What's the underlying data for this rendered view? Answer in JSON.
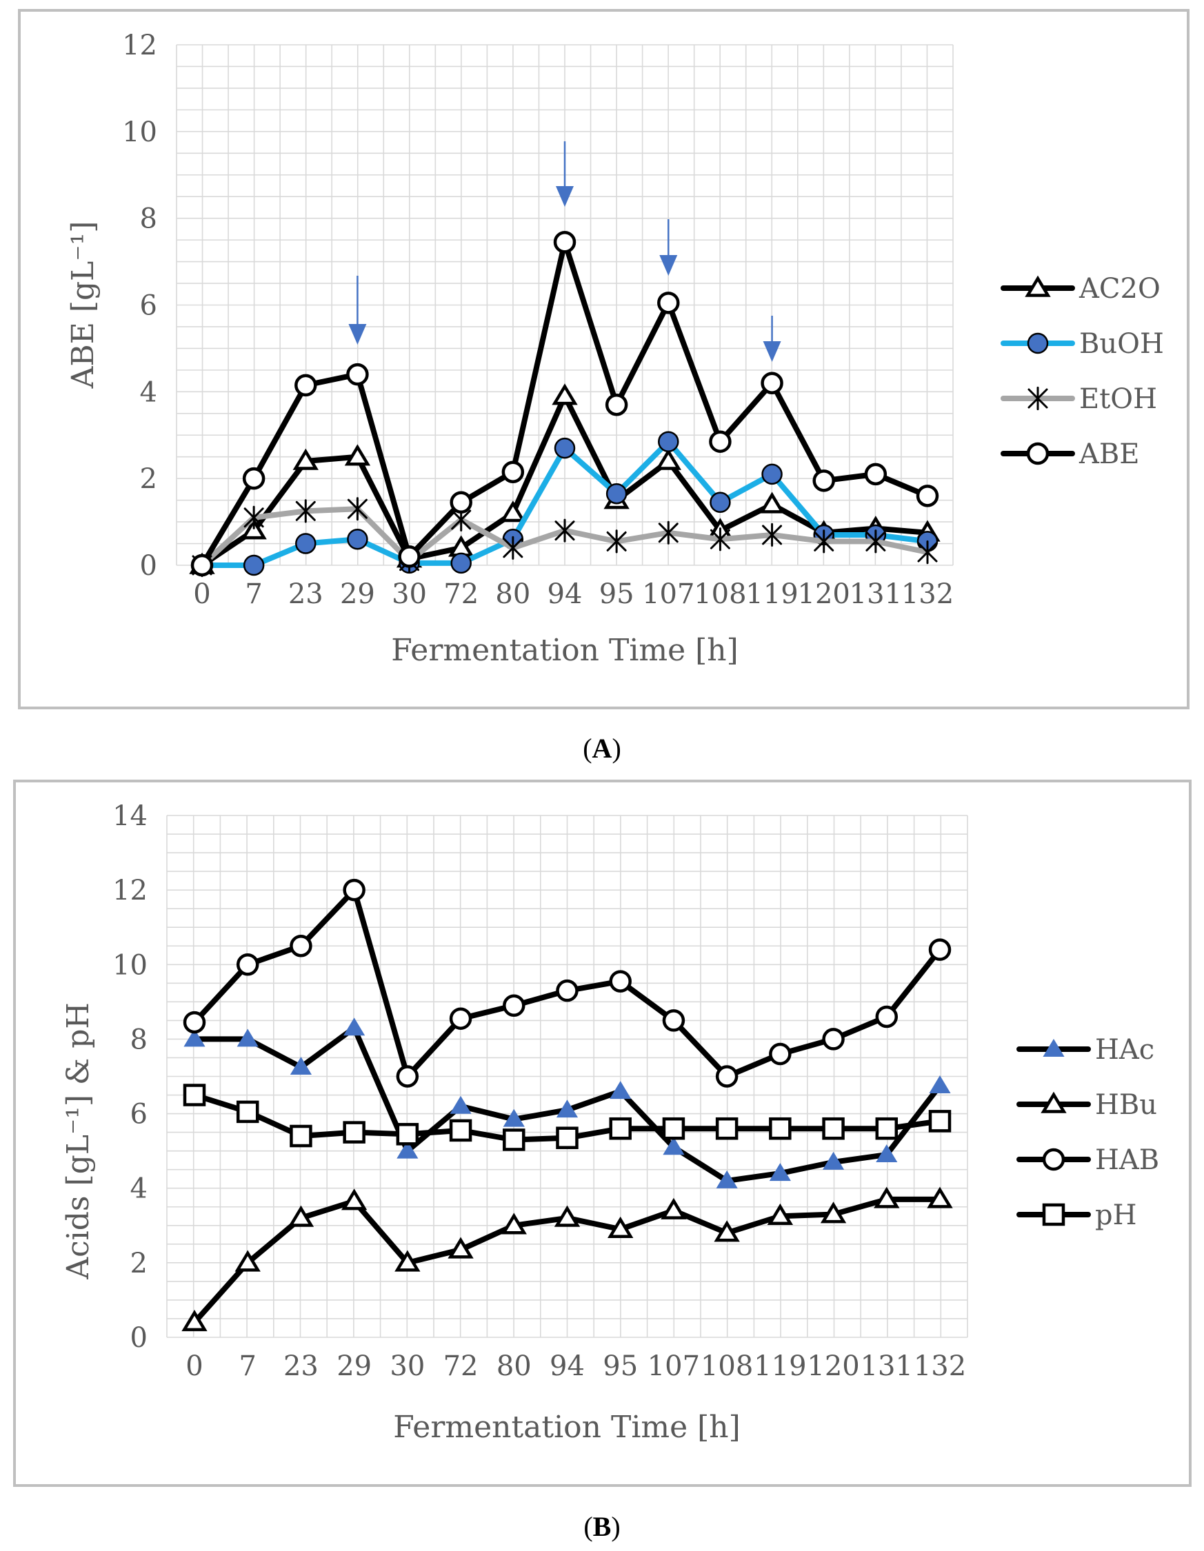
{
  "captions": {
    "a": "(A)",
    "b": "(B)"
  },
  "colors": {
    "black": "#000000",
    "blue_line": "#1CAEE6",
    "blue_marker": "#4472C4",
    "gray_line": "#A6A6A6",
    "grid": "#D9D9D9",
    "frame": "#BFBFBF",
    "text": "#595959",
    "arrow": "#4472C4"
  },
  "chart_data": [
    {
      "id": "A",
      "type": "line",
      "categories": [
        "0",
        "7",
        "23",
        "29",
        "30",
        "72",
        "80",
        "94",
        "95",
        "107",
        "108",
        "119",
        "120",
        "131",
        "132"
      ],
      "ylabel": "ABE [gL⁻¹]",
      "xlabel": "Fermentation Time [h]",
      "ylim": [
        0,
        12
      ],
      "yticks": [
        0,
        2,
        4,
        6,
        8,
        10,
        12
      ],
      "grid": true,
      "legend_position": "right",
      "arrows_at": [
        "29",
        "94",
        "107",
        "119"
      ],
      "series": [
        {
          "name": "AC2O",
          "marker": "triangle-open",
          "color": "#000000",
          "values": [
            0,
            0.8,
            2.4,
            2.5,
            0.15,
            0.4,
            1.2,
            3.9,
            1.5,
            2.4,
            0.8,
            1.4,
            0.75,
            0.85,
            0.75
          ]
        },
        {
          "name": "BuOH",
          "marker": "circle-filled",
          "color": "#1CAEE6",
          "values": [
            0,
            0,
            0.5,
            0.6,
            0.05,
            0.05,
            0.6,
            2.7,
            1.65,
            2.85,
            1.45,
            2.1,
            0.7,
            0.7,
            0.55
          ]
        },
        {
          "name": "EtOH",
          "marker": "star",
          "color": "#A6A6A6",
          "values": [
            0,
            1.1,
            1.25,
            1.3,
            0.1,
            1.05,
            0.4,
            0.8,
            0.55,
            0.75,
            0.6,
            0.7,
            0.55,
            0.55,
            0.3
          ]
        },
        {
          "name": "ABE",
          "marker": "circle-open",
          "color": "#000000",
          "values": [
            0,
            2.0,
            4.15,
            4.4,
            0.2,
            1.45,
            2.15,
            7.45,
            3.7,
            6.05,
            2.85,
            4.2,
            1.95,
            2.1,
            1.6
          ]
        }
      ]
    },
    {
      "id": "B",
      "type": "line",
      "categories": [
        "0",
        "7",
        "23",
        "29",
        "30",
        "72",
        "80",
        "94",
        "95",
        "107",
        "108",
        "119",
        "120",
        "131",
        "132"
      ],
      "ylabel": "Acids [gL⁻¹] & pH",
      "xlabel": "Fermentation Time [h]",
      "ylim": [
        0,
        14
      ],
      "yticks": [
        0,
        2,
        4,
        6,
        8,
        10,
        12,
        14
      ],
      "grid": true,
      "legend_position": "right",
      "series": [
        {
          "name": "HAc",
          "marker": "triangle-filled",
          "color": "#000000",
          "values": [
            8.0,
            8.0,
            7.25,
            8.3,
            5.0,
            6.2,
            5.85,
            6.1,
            6.6,
            5.1,
            4.2,
            4.4,
            4.7,
            4.9,
            6.75
          ]
        },
        {
          "name": "HBu",
          "marker": "triangle-open",
          "color": "#000000",
          "values": [
            0.4,
            2.0,
            3.2,
            3.65,
            2.0,
            2.35,
            3.0,
            3.2,
            2.9,
            3.4,
            2.8,
            3.25,
            3.3,
            3.7,
            3.7
          ]
        },
        {
          "name": "HAB",
          "marker": "circle-open",
          "color": "#000000",
          "values": [
            8.45,
            10.0,
            10.5,
            12.0,
            7.0,
            8.55,
            8.9,
            9.3,
            9.55,
            8.5,
            7.0,
            7.6,
            8.0,
            8.6,
            10.4
          ]
        },
        {
          "name": "pH",
          "marker": "square-open",
          "color": "#000000",
          "values": [
            6.5,
            6.05,
            5.4,
            5.5,
            5.45,
            5.55,
            5.3,
            5.35,
            5.6,
            5.6,
            5.6,
            5.6,
            5.6,
            5.6,
            5.8
          ]
        }
      ]
    }
  ]
}
